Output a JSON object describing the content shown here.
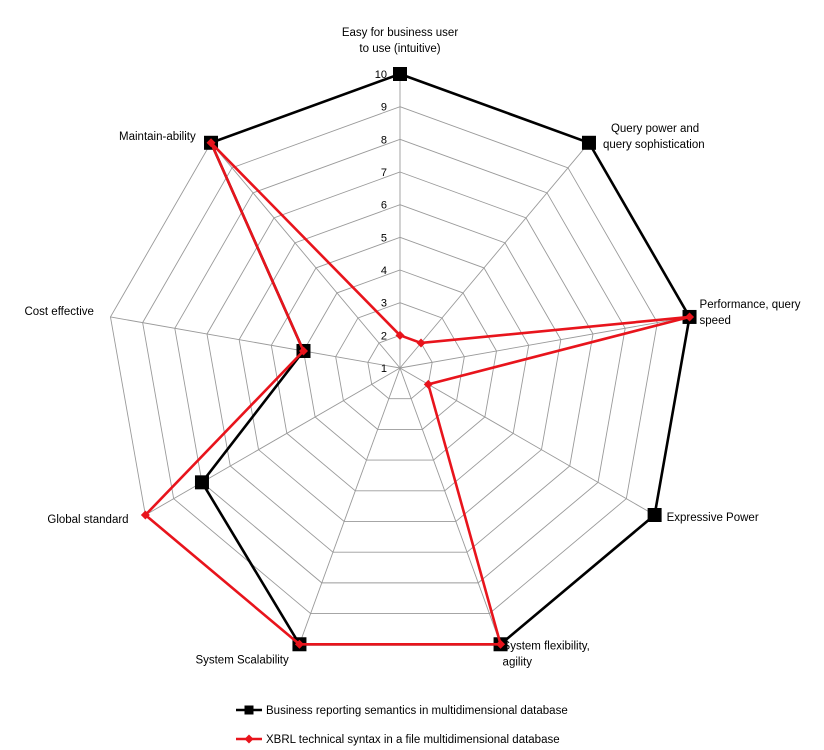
{
  "chart_data": {
    "type": "radar",
    "axes": [
      "Easy for business user to use (intuitive)",
      "Query power and query sophistication",
      "Performance, query speed",
      "Expressive Power",
      "System flexibility, agility",
      "System Scalability",
      "Global standard",
      "Cost effective",
      "Maintain-ability"
    ],
    "axis_label_lines": [
      [
        "Easy for business user",
        "to use (intuitive)"
      ],
      [
        "Query power and",
        "query sophistication"
      ],
      [
        "Performance, query",
        "speed"
      ],
      [
        "Expressive Power"
      ],
      [
        "System flexibility,",
        "agility"
      ],
      [
        "System Scalability"
      ],
      [
        "Global standard"
      ],
      [
        "Cost effective"
      ],
      [
        "Maintain-ability"
      ]
    ],
    "ticks": [
      "1",
      "2",
      "3",
      "4",
      "5",
      "6",
      "7",
      "8",
      "9",
      "10"
    ],
    "range": [
      1,
      10
    ],
    "grid": true,
    "series": [
      {
        "name": "Business reporting semantics in multidimensional database",
        "color": "#000000",
        "marker": "square",
        "values": [
          10,
          10,
          10,
          10,
          10,
          10,
          8,
          4,
          10
        ]
      },
      {
        "name": "XBRL technical syntax in a file multidimensional database",
        "color": "#e8141c",
        "marker": "diamond",
        "values": [
          2,
          2,
          10,
          2,
          10,
          10,
          10,
          4,
          10
        ]
      }
    ],
    "legend_position": "bottom"
  }
}
